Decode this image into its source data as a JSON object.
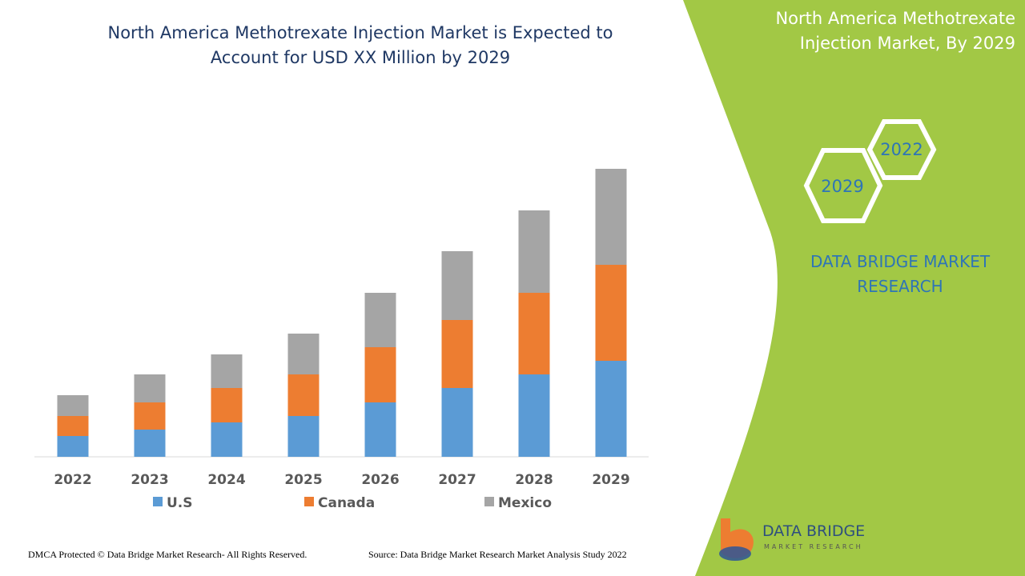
{
  "chart_data": {
    "type": "bar",
    "stacked": true,
    "title": "North America Methotrexate Injection Market is Expected to Account for USD XX Million by 2029",
    "categories": [
      "2022",
      "2023",
      "2024",
      "2025",
      "2026",
      "2027",
      "2028",
      "2029"
    ],
    "series": [
      {
        "name": "U.S",
        "color": "#5b9bd5",
        "values": [
          26,
          34,
          43,
          51,
          68,
          86,
          103,
          120
        ]
      },
      {
        "name": "Canada",
        "color": "#ed7d31",
        "values": [
          25,
          34,
          43,
          52,
          69,
          85,
          102,
          120
        ]
      },
      {
        "name": "Mexico",
        "color": "#a5a5a5",
        "values": [
          26,
          35,
          42,
          51,
          68,
          86,
          103,
          120
        ]
      }
    ],
    "ylim": [
      0,
      360
    ]
  },
  "sidebar": {
    "title": "North America Methotrexate Injection Market, By 2029",
    "hexagons": [
      "2022",
      "2029"
    ],
    "brand": "DATA BRIDGE MARKET RESEARCH"
  },
  "logo": {
    "name": "DATA BRIDGE",
    "tagline": "MARKET RESEARCH"
  },
  "footer": {
    "copyright": "DMCA Protected © Data Bridge Market Research- All Rights Reserved.",
    "source": "Source: Data Bridge Market Research Market Analysis Study 2022"
  }
}
